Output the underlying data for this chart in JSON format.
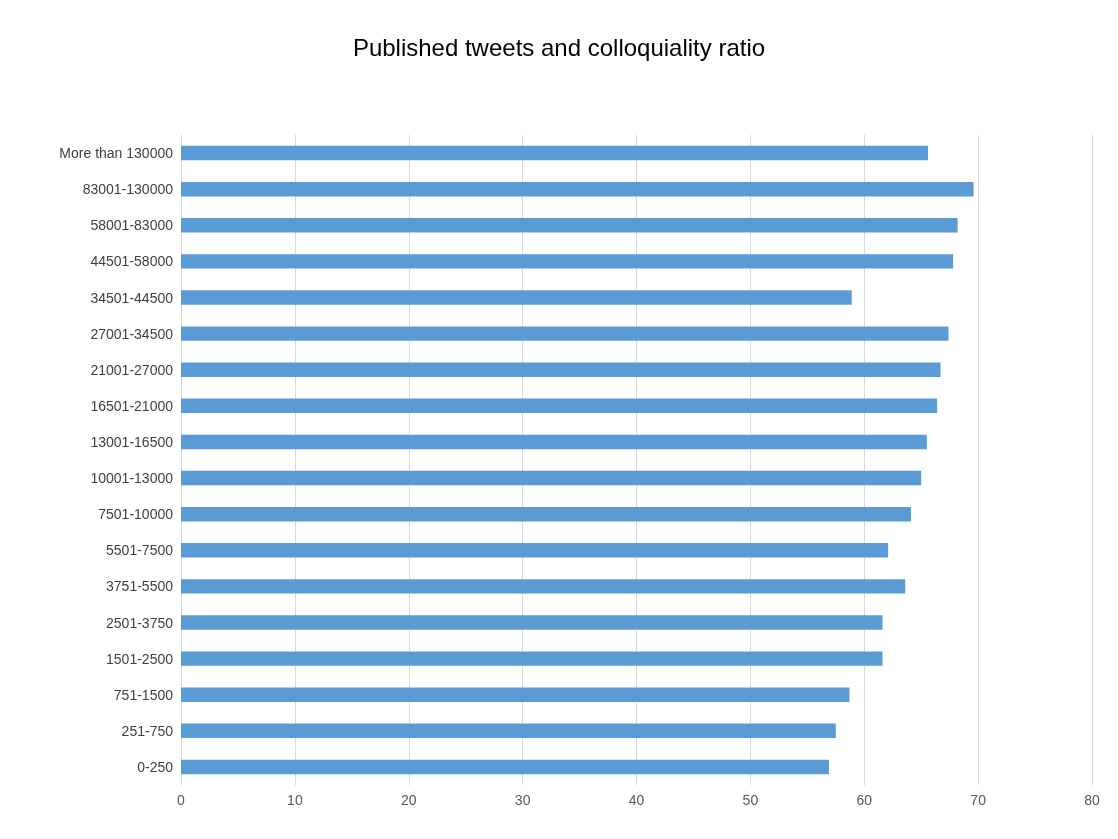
{
  "chart_data": {
    "type": "bar",
    "title": "Published tweets and colloquiality ratio",
    "orientation": "horizontal",
    "categories": [
      "More than 130000",
      "83001-130000",
      "58001-83000",
      "44501-58000",
      "34501-44500",
      "27001-34500",
      "21001-27000",
      "16501-21000",
      "13001-16500",
      "10001-13000",
      "7501-10000",
      "5501-7500",
      "3751-5500",
      "2501-3750",
      "1501-2500",
      "751-1500",
      "251-750",
      "0-250"
    ],
    "values": [
      65.6,
      69.6,
      68.2,
      67.8,
      58.9,
      67.4,
      66.7,
      66.4,
      65.5,
      65.0,
      64.1,
      62.1,
      63.6,
      61.6,
      61.6,
      58.7,
      57.5,
      56.9
    ],
    "color": "#5b9bd5",
    "xlim": [
      0,
      80
    ],
    "xticks": [
      0,
      10,
      20,
      30,
      40,
      50,
      60,
      70,
      80
    ],
    "grid": "x"
  }
}
